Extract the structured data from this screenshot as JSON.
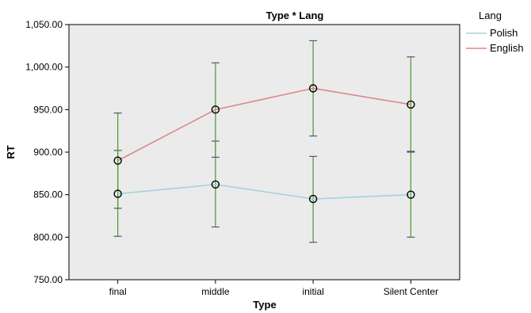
{
  "chart_data": {
    "type": "line",
    "title": "Type * Lang",
    "xlabel": "Type",
    "ylabel": "RT",
    "categories": [
      "final",
      "middle",
      "initial",
      "Silent Center"
    ],
    "ylim": [
      750,
      1050
    ],
    "yticks": [
      "750.00",
      "800.00",
      "850.00",
      "900.00",
      "950.00",
      "1,000.00",
      "1,050.00"
    ],
    "ytick_values": [
      750,
      800,
      850,
      900,
      950,
      1000,
      1050
    ],
    "legend_title": "Lang",
    "legend_position": "right",
    "grid": false,
    "series": [
      {
        "name": "Polish",
        "color": "#a6d2e0",
        "values": [
          851,
          862,
          845,
          850
        ],
        "error_low": [
          801,
          812,
          794,
          800
        ],
        "error_high": [
          902,
          913,
          895,
          900
        ]
      },
      {
        "name": "English",
        "color": "#d98a8a",
        "values": [
          890,
          950,
          975,
          956
        ],
        "error_low": [
          834,
          894,
          919,
          901
        ],
        "error_high": [
          946,
          1005,
          1031,
          1012
        ]
      }
    ],
    "error_bar_color": "#4a9a2a",
    "marker_color": "#000000",
    "plot_background": "#ebebeb"
  }
}
